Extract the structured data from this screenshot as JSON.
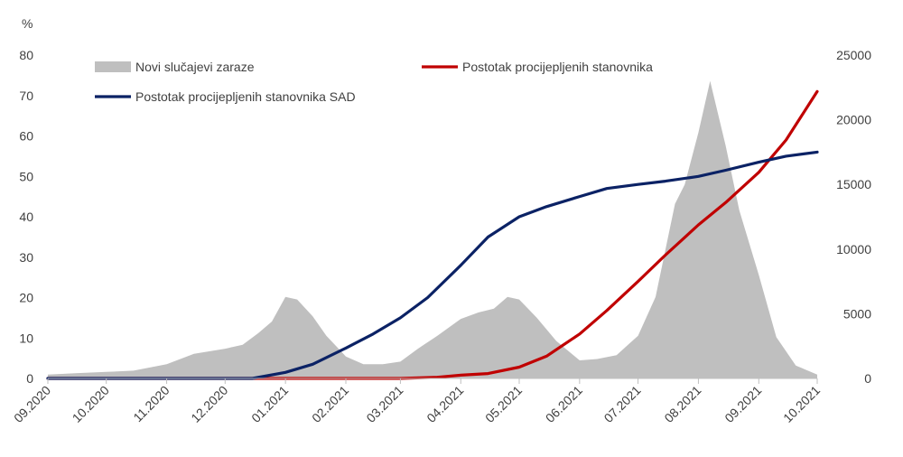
{
  "chart_data": {
    "type": "area",
    "y_left_label": "%",
    "ylim_left": [
      0,
      80
    ],
    "yticks_left": [
      "0",
      "10",
      "20",
      "30",
      "40",
      "50",
      "60",
      "70",
      "80"
    ],
    "ylim_right": [
      0,
      25000
    ],
    "yticks_right": [
      "0",
      "5000",
      "10000",
      "15000",
      "20000",
      "25000"
    ],
    "xticks": [
      "09.2020",
      "10.2020",
      "11.2020",
      "12.2020",
      "01.2021",
      "02.2021",
      "03.2021",
      "04.2021",
      "05.2021",
      "06.2021",
      "07.2021",
      "08.2021",
      "09.2021",
      "10.2021"
    ],
    "grid": false,
    "legend_position": "top",
    "series": [
      {
        "name": "Novi slučajevi zaraze",
        "kind": "area",
        "axis": "right",
        "color": "#bfbfbf",
        "x": [
          "2020-09-01",
          "2020-09-15",
          "2020-10-01",
          "2020-10-15",
          "2020-11-01",
          "2020-11-15",
          "2020-12-01",
          "2020-12-10",
          "2020-12-18",
          "2020-12-25",
          "2021-01-01",
          "2021-01-07",
          "2021-01-15",
          "2021-01-22",
          "2021-02-01",
          "2021-02-10",
          "2021-02-20",
          "2021-03-01",
          "2021-03-10",
          "2021-03-20",
          "2021-04-01",
          "2021-04-10",
          "2021-04-18",
          "2021-04-25",
          "2021-05-01",
          "2021-05-10",
          "2021-05-20",
          "2021-06-01",
          "2021-06-10",
          "2021-06-20",
          "2021-07-01",
          "2021-07-10",
          "2021-07-20",
          "2021-07-25",
          "2021-08-01",
          "2021-08-07",
          "2021-08-15",
          "2021-08-22",
          "2021-09-01",
          "2021-09-10",
          "2021-09-20",
          "2021-10-01"
        ],
        "y": [
          300,
          400,
          500,
          600,
          1100,
          1900,
          2300,
          2600,
          3500,
          4400,
          6300,
          6100,
          4800,
          3300,
          1700,
          1100,
          1100,
          1300,
          2300,
          3300,
          4600,
          5100,
          5400,
          6300,
          6100,
          4700,
          2900,
          1400,
          1500,
          1800,
          3300,
          6300,
          13500,
          15000,
          19000,
          23000,
          18000,
          13000,
          8000,
          3200,
          1000,
          300
        ]
      },
      {
        "name": "Postotak procijepljenih stanovnika",
        "kind": "line",
        "axis": "left",
        "color": "#c00000",
        "x": [
          "2020-09-01",
          "2020-12-25",
          "2021-02-01",
          "2021-03-01",
          "2021-03-20",
          "2021-04-01",
          "2021-04-15",
          "2021-05-01",
          "2021-05-15",
          "2021-06-01",
          "2021-06-15",
          "2021-07-01",
          "2021-07-15",
          "2021-08-01",
          "2021-08-15",
          "2021-09-01",
          "2021-09-15",
          "2021-10-01"
        ],
        "y": [
          0,
          0,
          0,
          0,
          0.3,
          0.8,
          1.2,
          2.8,
          5.5,
          11,
          16.8,
          24,
          30.5,
          38,
          43.5,
          51,
          59,
          71
        ]
      },
      {
        "name": "Postotak procijepljenih stanovnika SAD",
        "kind": "line",
        "axis": "left",
        "color": "#0b2265",
        "x": [
          "2020-09-01",
          "2020-12-15",
          "2021-01-01",
          "2021-01-15",
          "2021-02-01",
          "2021-02-15",
          "2021-03-01",
          "2021-03-15",
          "2021-04-01",
          "2021-04-15",
          "2021-05-01",
          "2021-05-15",
          "2021-06-01",
          "2021-06-15",
          "2021-07-01",
          "2021-07-15",
          "2021-08-01",
          "2021-08-15",
          "2021-09-01",
          "2021-09-15",
          "2021-10-01"
        ],
        "y": [
          0,
          0,
          1.5,
          3.5,
          7.5,
          11,
          15,
          20,
          28,
          35,
          40,
          42.5,
          45,
          47,
          48,
          48.8,
          50,
          51.5,
          53.5,
          55,
          56
        ]
      }
    ]
  }
}
